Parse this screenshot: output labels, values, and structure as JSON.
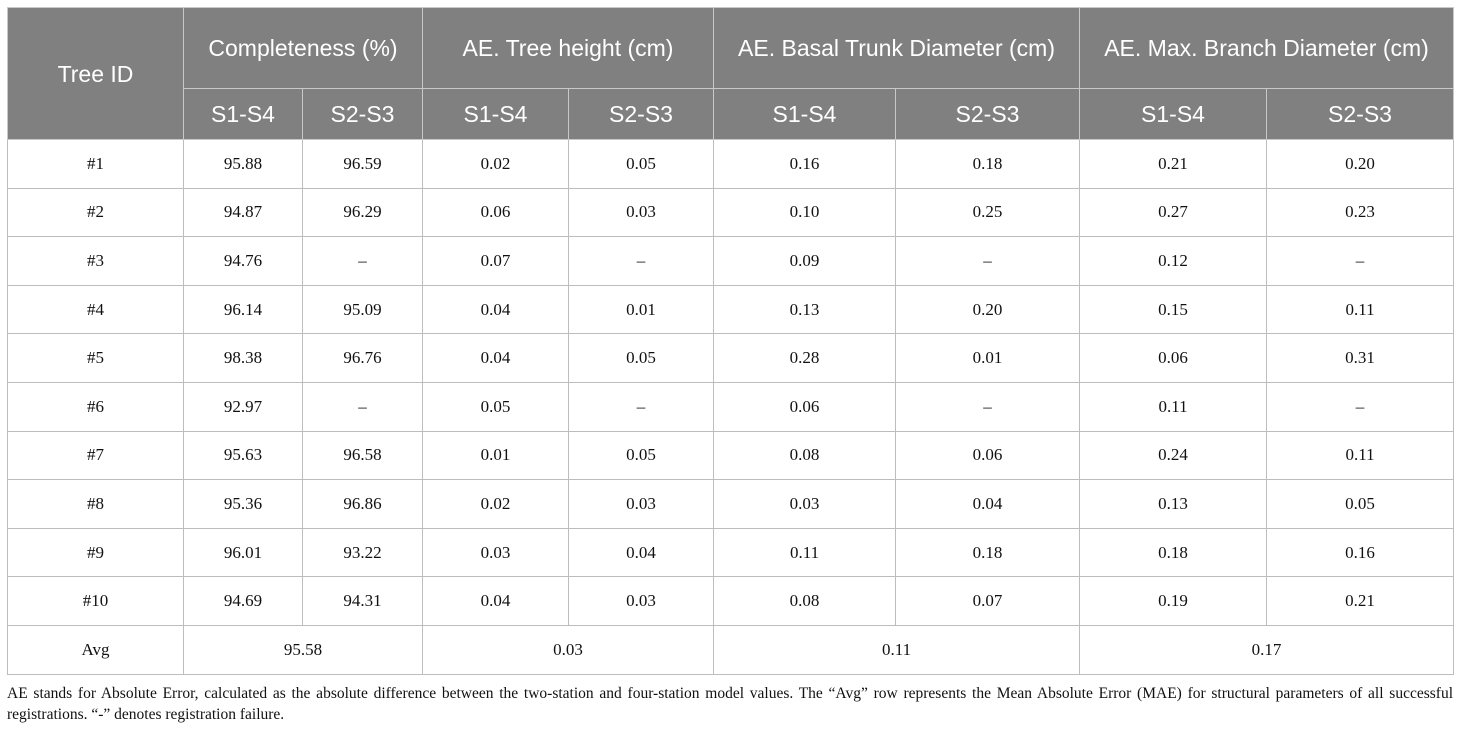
{
  "table": {
    "header_group": [
      {
        "key": "tree_id",
        "label": "Tree ID"
      },
      {
        "key": "completeness",
        "label": "Completeness (%)"
      },
      {
        "key": "tree_height",
        "label": "AE. Tree height (cm)"
      },
      {
        "key": "basal_trunk",
        "label": "AE. Basal Trunk Diameter (cm)"
      },
      {
        "key": "max_branch",
        "label": "AE. Max. Branch Diameter (cm)"
      }
    ],
    "sub_headers": [
      "S1-S4",
      "S2-S3",
      "S1-S4",
      "S2-S3",
      "S1-S4",
      "S2-S3",
      "S1-S4",
      "S2-S3"
    ],
    "rows": [
      [
        "#1",
        "95.88",
        "96.59",
        "0.02",
        "0.05",
        "0.16",
        "0.18",
        "0.21",
        "0.20"
      ],
      [
        "#2",
        "94.87",
        "96.29",
        "0.06",
        "0.03",
        "0.10",
        "0.25",
        "0.27",
        "0.23"
      ],
      [
        "#3",
        "94.76",
        "–",
        "0.07",
        "–",
        "0.09",
        "–",
        "0.12",
        "–"
      ],
      [
        "#4",
        "96.14",
        "95.09",
        "0.04",
        "0.01",
        "0.13",
        "0.20",
        "0.15",
        "0.11"
      ],
      [
        "#5",
        "98.38",
        "96.76",
        "0.04",
        "0.05",
        "0.28",
        "0.01",
        "0.06",
        "0.31"
      ],
      [
        "#6",
        "92.97",
        "–",
        "0.05",
        "–",
        "0.06",
        "–",
        "0.11",
        "–"
      ],
      [
        "#7",
        "95.63",
        "96.58",
        "0.01",
        "0.05",
        "0.08",
        "0.06",
        "0.24",
        "0.11"
      ],
      [
        "#8",
        "95.36",
        "96.86",
        "0.02",
        "0.03",
        "0.03",
        "0.04",
        "0.13",
        "0.05"
      ],
      [
        "#9",
        "96.01",
        "93.22",
        "0.03",
        "0.04",
        "0.11",
        "0.18",
        "0.18",
        "0.16"
      ],
      [
        "#10",
        "94.69",
        "94.31",
        "0.04",
        "0.03",
        "0.08",
        "0.07",
        "0.19",
        "0.21"
      ]
    ],
    "avg_row": {
      "label": "Avg",
      "completeness": "95.58",
      "tree_height": "0.03",
      "basal_trunk": "0.11",
      "max_branch": "0.17"
    }
  },
  "footnote": "AE stands for Absolute Error, calculated as the absolute difference between the two-station and four-station model values. The “Avg” row represents the Mean Absolute Error (MAE) for structural parameters of all successful registrations. “-” denotes registration failure.",
  "colors": {
    "header_bg": "#808080",
    "header_text": "#ffffff",
    "grid_line": "#bdbdbd"
  }
}
